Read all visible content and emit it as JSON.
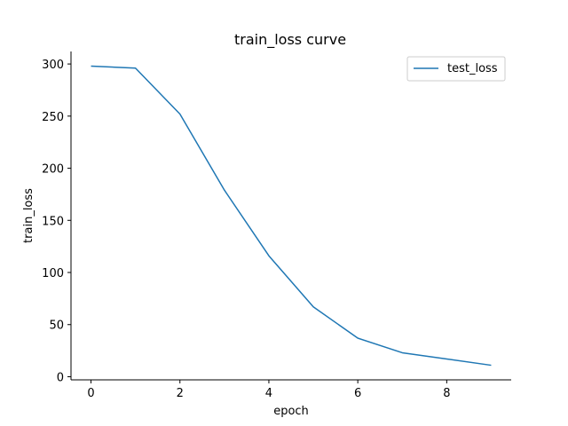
{
  "chart_data": {
    "type": "line",
    "title": "train_loss curve",
    "xlabel": "epoch",
    "ylabel": "train_loss",
    "x": [
      0,
      1,
      2,
      3,
      4,
      5,
      6,
      7,
      8,
      9
    ],
    "series": [
      {
        "name": "test_loss",
        "color": "#1f77b4",
        "values": [
          298,
          296,
          252,
          179,
          116,
          67,
          37,
          23,
          17,
          11
        ]
      }
    ],
    "xlim": [
      -0.45,
      9.45
    ],
    "ylim": [
      -3,
      312
    ],
    "xticks": [
      0,
      2,
      4,
      6,
      8
    ],
    "yticks": [
      0,
      50,
      100,
      150,
      200,
      250,
      300
    ],
    "grid": false,
    "legend_position": "top-right",
    "spines": "left-bottom"
  }
}
